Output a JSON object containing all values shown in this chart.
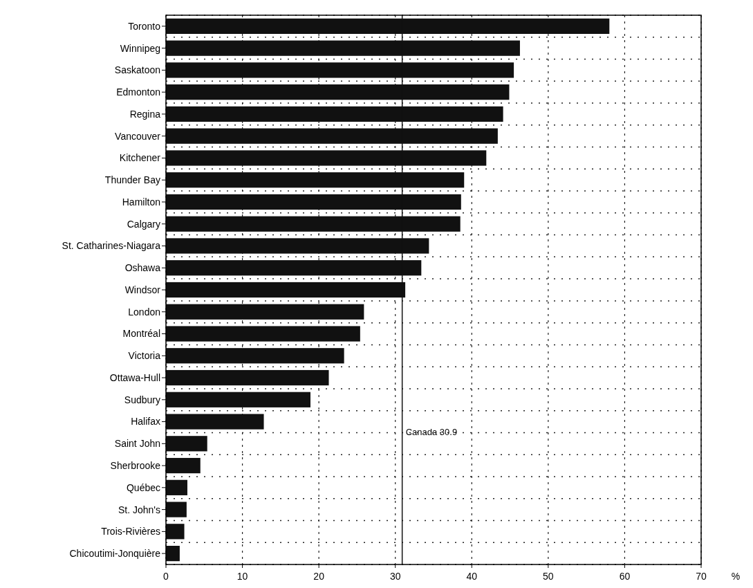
{
  "chart_data": {
    "type": "bar",
    "orientation": "horizontal",
    "xlabel": "%",
    "categories": [
      "Toronto",
      "Winnipeg",
      "Saskatoon",
      "Edmonton",
      "Regina",
      "Vancouver",
      "Kitchener",
      "Thunder Bay",
      "Hamilton",
      "Calgary",
      "St. Catharines-Niagara",
      "Oshawa",
      "Windsor",
      "London",
      "Montréal",
      "Victoria",
      "Ottawa-Hull",
      "Sudbury",
      "Halifax",
      "Saint John",
      "Sherbrooke",
      "Québec",
      "St. John's",
      "Trois-Rivières",
      "Chicoutimi-Jonquière"
    ],
    "values": [
      58.0,
      46.3,
      45.5,
      44.9,
      44.1,
      43.4,
      41.9,
      39.0,
      38.6,
      38.5,
      34.4,
      33.4,
      31.3,
      25.9,
      25.4,
      23.3,
      21.3,
      18.9,
      12.8,
      5.4,
      4.5,
      2.8,
      2.7,
      2.4,
      1.8
    ],
    "color": "#111111",
    "xlim": [
      0,
      70
    ],
    "xticks": [
      0,
      10,
      20,
      30,
      40,
      50,
      60,
      70
    ],
    "grid": true,
    "ref_lines": [
      {
        "axis": "x",
        "value": 30.9,
        "label": "Canada 30.9",
        "color": "#111111"
      }
    ]
  }
}
